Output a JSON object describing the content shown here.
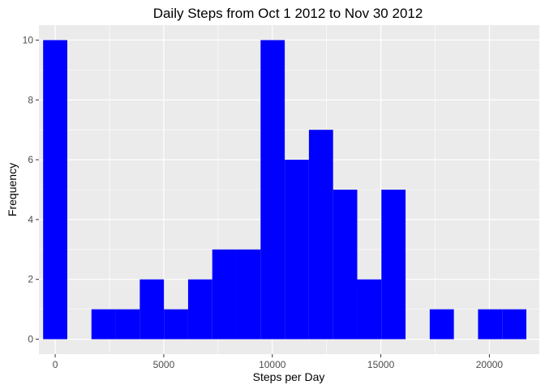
{
  "chart_data": {
    "type": "bar",
    "title": "Daily Steps from Oct 1 2012 to Nov 30 2012",
    "xlabel": "Steps per Day",
    "ylabel": "Frequency",
    "xlim": [
      -750,
      22300
    ],
    "ylim": [
      -0.5,
      10.5
    ],
    "x_ticks": [
      0,
      5000,
      10000,
      15000,
      20000
    ],
    "x_tick_labels": [
      "0",
      "5000",
      "10000",
      "15000",
      "20000"
    ],
    "y_ticks": [
      0,
      2,
      4,
      6,
      8,
      10
    ],
    "y_tick_labels": [
      "0",
      "2",
      "4",
      "6",
      "8",
      "10"
    ],
    "bin_edges": [
      -556.5,
      556.5,
      1669.5,
      2782.5,
      3895.5,
      5008.5,
      6121.5,
      7234.5,
      8347.5,
      9460.5,
      10573.5,
      11686.5,
      12799.5,
      13912.5,
      15025.5,
      16138.5,
      17251.5,
      18364.5,
      19477.5,
      20590.5,
      21703.5
    ],
    "values": [
      10,
      0,
      1,
      1,
      2,
      1,
      2,
      3,
      3,
      10,
      6,
      7,
      5,
      2,
      5,
      0,
      1,
      0,
      1,
      1
    ],
    "grid": true,
    "legend": "none",
    "colors": {
      "bar_fill": "#0000ff",
      "panel_background": "#ebebeb",
      "grid": "#ffffff",
      "tick_text": "#4d4d4d",
      "axis_ticks": "#333333"
    }
  }
}
